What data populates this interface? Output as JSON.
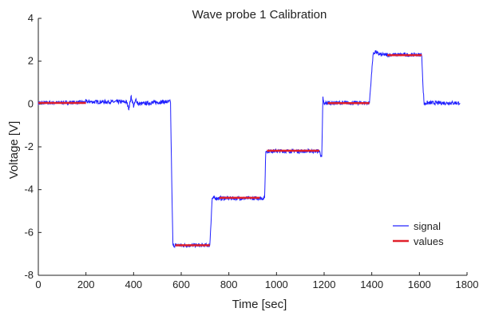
{
  "chart_data": {
    "type": "line",
    "title": "Wave probe 1 Calibration",
    "xlabel": "Time [sec]",
    "ylabel": "Voltage [V]",
    "xlim": [
      0,
      1800
    ],
    "ylim": [
      -8,
      4
    ],
    "xticks": [
      0,
      200,
      400,
      600,
      800,
      1000,
      1200,
      1400,
      1600,
      1800
    ],
    "yticks": [
      -8,
      -6,
      -4,
      -2,
      0,
      2,
      4
    ],
    "grid": false,
    "legend": "lower-right",
    "series": [
      {
        "name": "signal",
        "color": "#1f1fff",
        "x": [
          0,
          195,
          200,
          205,
          370,
          380,
          390,
          400,
          410,
          420,
          520,
          555,
          560,
          565,
          575,
          720,
          730,
          735,
          950,
          955,
          960,
          1180,
          1190,
          1195,
          1200,
          1205,
          1210,
          1390,
          1400,
          1405,
          1415,
          1425,
          1440,
          1610,
          1615,
          1620,
          1630,
          1770
        ],
        "y": [
          0.05,
          0.08,
          0.12,
          0.1,
          0.1,
          -0.2,
          0.35,
          -0.1,
          0.2,
          0.0,
          0.1,
          0.1,
          -3.5,
          -6.6,
          -6.6,
          -6.6,
          -4.4,
          -4.4,
          -4.4,
          -2.2,
          -2.2,
          -2.2,
          -2.5,
          0.3,
          -0.05,
          0.05,
          0.05,
          0.05,
          1.5,
          2.3,
          2.45,
          2.35,
          2.3,
          2.3,
          0.8,
          0.0,
          0.05,
          0.05
        ]
      },
      {
        "name": "values",
        "color": "#e0202a",
        "segments": [
          {
            "x": [
              0,
              200
            ],
            "y": 0.05
          },
          {
            "x": [
              575,
              720
            ],
            "y": -6.6
          },
          {
            "x": [
              760,
              930
            ],
            "y": -4.38
          },
          {
            "x": [
              960,
              1180
            ],
            "y": -2.18
          },
          {
            "x": [
              1215,
              1390
            ],
            "y": 0.04
          },
          {
            "x": [
              1465,
              1610
            ],
            "y": 2.28
          }
        ]
      }
    ]
  }
}
